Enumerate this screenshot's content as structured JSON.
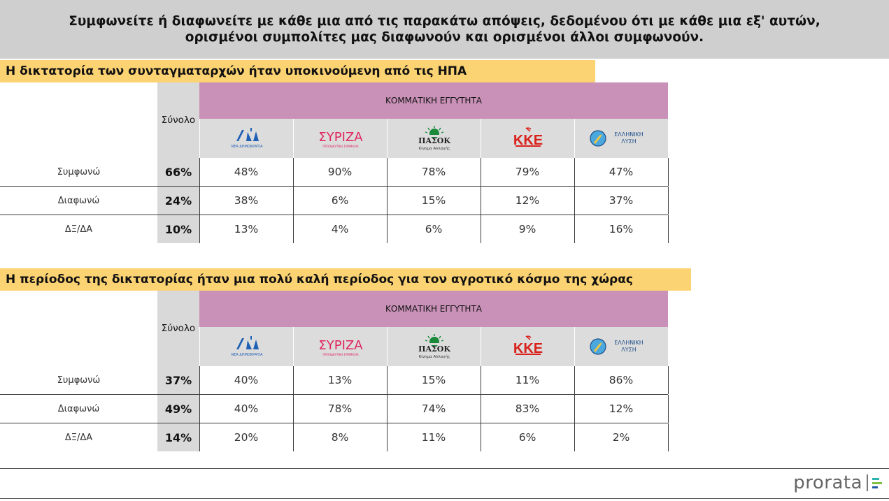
{
  "header": {
    "line1": "Συμφωνείτε ή διαφωνείτε με κάθε μια από τις παρακάτω απόψεις, δεδομένου ότι με κάθε μια εξ' αυτών,",
    "line2": "ορισμένοι συμπολίτες μας διαφωνούν και ορισμένοι άλλοι συμφωνούν."
  },
  "colors": {
    "header_bg": "#d0cfcf",
    "question_bg": "#fcd373",
    "party_header_bg": "#c991b7",
    "total_bg": "#d9d9d9",
    "logo_bg": "#dcdcdc"
  },
  "table_labels": {
    "total": "Σύνολο",
    "party_header": "ΚΟΜΜΑΤΙΚΗ ΕΓΓΥΤΗΤΑ"
  },
  "parties": [
    {
      "id": "nd",
      "icon": "nd-logo-icon",
      "logo_text": "ΝΔ",
      "logo_sub": "ΝΕΑ ΔΗΜΟΚΡΑΤΙΑ"
    },
    {
      "id": "syriza",
      "icon": "syriza-logo-icon",
      "logo_text": "ΣΥΡΙΖΑ",
      "logo_sub": "ΠΡΟΟΔΕΥΤΙΚΗ ΣΥΜΜΑΧΙΑ"
    },
    {
      "id": "pasok",
      "icon": "pasok-logo-icon",
      "logo_text": "ΠΑΣΟΚ",
      "logo_sub": "Κίνημα Αλλαγής"
    },
    {
      "id": "kke",
      "icon": "kke-logo-icon",
      "logo_text": "ΚΚΕ"
    },
    {
      "id": "elliniki",
      "icon": "elliniki-lysi-logo-icon",
      "logo_text": "ΕΛΛΗΝΙΚΗ",
      "logo_sub": "ΛΥΣΗ"
    }
  ],
  "chart_data": [
    {
      "type": "table",
      "title": "Η δικτατορία των συνταγματαρχών ήταν υποκινούμενη από τις ΗΠΑ",
      "rows": [
        {
          "label": "Συμφωνώ",
          "total": "66%",
          "values": [
            "48%",
            "90%",
            "78%",
            "79%",
            "47%"
          ]
        },
        {
          "label": "Διαφωνώ",
          "total": "24%",
          "values": [
            "38%",
            "6%",
            "15%",
            "12%",
            "37%"
          ]
        },
        {
          "label": "ΔΞ/ΔΑ",
          "total": "10%",
          "values": [
            "13%",
            "4%",
            "6%",
            "9%",
            "16%"
          ]
        }
      ]
    },
    {
      "type": "table",
      "title": "Η περίοδος της δικτατορίας ήταν μια πολύ καλή περίοδος για τον αγροτικό κόσμο της χώρας",
      "rows": [
        {
          "label": "Συμφωνώ",
          "total": "37%",
          "values": [
            "40%",
            "13%",
            "15%",
            "11%",
            "86%"
          ]
        },
        {
          "label": "Διαφωνώ",
          "total": "49%",
          "values": [
            "40%",
            "78%",
            "74%",
            "83%",
            "12%"
          ]
        },
        {
          "label": "ΔΞ/ΔΑ",
          "total": "14%",
          "values": [
            "20%",
            "8%",
            "11%",
            "6%",
            "2%"
          ]
        }
      ]
    }
  ],
  "brand": {
    "name": "prorata"
  }
}
